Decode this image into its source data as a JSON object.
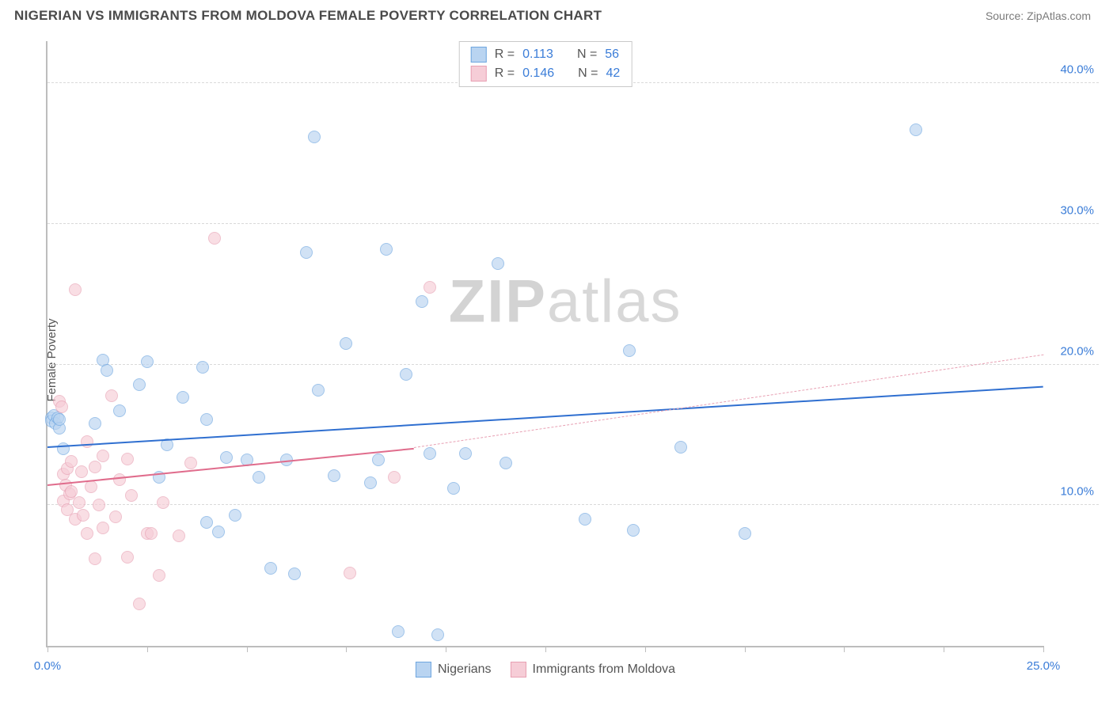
{
  "header": {
    "title": "NIGERIAN VS IMMIGRANTS FROM MOLDOVA FEMALE POVERTY CORRELATION CHART",
    "source": "Source: ZipAtlas.com"
  },
  "chart": {
    "type": "scatter",
    "ylabel": "Female Poverty",
    "watermark_a": "ZIP",
    "watermark_b": "atlas",
    "background_color": "#ffffff",
    "grid_color": "#d9d9d9",
    "axis_color": "#bdbdbd",
    "tick_label_color": "#3b7dd8",
    "xlim": [
      0,
      25
    ],
    "ylim": [
      0,
      43
    ],
    "xticks": [
      0,
      2.5,
      5,
      7.5,
      10,
      12.5,
      15,
      17.5,
      20,
      22.5,
      25
    ],
    "xtick_labels": {
      "0": "0.0%",
      "25": "25.0%"
    },
    "yticks": [
      10,
      20,
      30,
      40
    ],
    "ytick_labels": {
      "10": "10.0%",
      "20": "20.0%",
      "30": "30.0%",
      "40": "40.0%"
    },
    "marker_radius": 8,
    "marker_border_width": 1.5,
    "series": [
      {
        "name": "Nigerians",
        "fill": "#b9d4f1",
        "stroke": "#6ea6e0",
        "fill_opacity": 0.65,
        "r_value": "0.113",
        "n_value": "56",
        "trend": {
          "x1": 0,
          "y1": 14.2,
          "x2": 25,
          "y2": 18.5,
          "color": "#2f6fd0",
          "width": 2.5,
          "dash": "solid"
        },
        "points": [
          [
            0.1,
            16.2
          ],
          [
            0.1,
            16.0
          ],
          [
            0.15,
            16.4
          ],
          [
            0.2,
            15.8
          ],
          [
            0.25,
            16.2
          ],
          [
            0.3,
            15.5
          ],
          [
            0.3,
            16.1
          ],
          [
            0.4,
            14.0
          ],
          [
            1.2,
            15.8
          ],
          [
            1.4,
            20.3
          ],
          [
            1.5,
            19.6
          ],
          [
            1.8,
            16.7
          ],
          [
            2.3,
            18.6
          ],
          [
            2.5,
            20.2
          ],
          [
            2.8,
            12.0
          ],
          [
            3.0,
            14.3
          ],
          [
            3.4,
            17.7
          ],
          [
            4.0,
            8.8
          ],
          [
            4.0,
            16.1
          ],
          [
            4.3,
            8.1
          ],
          [
            4.5,
            13.4
          ],
          [
            4.7,
            9.3
          ],
          [
            3.9,
            19.8
          ],
          [
            5.0,
            13.2
          ],
          [
            5.3,
            12.0
          ],
          [
            5.6,
            5.5
          ],
          [
            6.0,
            13.2
          ],
          [
            6.2,
            5.1
          ],
          [
            6.5,
            28.0
          ],
          [
            6.7,
            36.2
          ],
          [
            6.8,
            18.2
          ],
          [
            7.2,
            12.1
          ],
          [
            7.5,
            21.5
          ],
          [
            8.1,
            11.6
          ],
          [
            8.3,
            13.2
          ],
          [
            8.5,
            28.2
          ],
          [
            8.8,
            1.0
          ],
          [
            9.0,
            19.3
          ],
          [
            9.4,
            24.5
          ],
          [
            9.6,
            13.7
          ],
          [
            9.8,
            0.8
          ],
          [
            10.2,
            11.2
          ],
          [
            10.5,
            13.7
          ],
          [
            11.3,
            27.2
          ],
          [
            11.5,
            13.0
          ],
          [
            13.5,
            9.0
          ],
          [
            14.6,
            21.0
          ],
          [
            14.7,
            8.2
          ],
          [
            15.9,
            14.1
          ],
          [
            17.5,
            8.0
          ],
          [
            21.8,
            36.7
          ]
        ]
      },
      {
        "name": "Immigrants from Moldova",
        "fill": "#f6cdd7",
        "stroke": "#e8a0b3",
        "fill_opacity": 0.65,
        "r_value": "0.146",
        "n_value": "42",
        "trend_solid": {
          "x1": 0,
          "y1": 11.5,
          "x2": 9.2,
          "y2": 14.1,
          "color": "#e06c8c",
          "width": 2,
          "dash": "solid"
        },
        "trend_dash": {
          "x1": 9.2,
          "y1": 14.1,
          "x2": 25,
          "y2": 20.7,
          "color": "#e8a0b3",
          "width": 1.3,
          "dash": "dashed"
        },
        "points": [
          [
            0.3,
            17.4
          ],
          [
            0.35,
            17.0
          ],
          [
            0.4,
            12.2
          ],
          [
            0.4,
            10.3
          ],
          [
            0.45,
            11.4
          ],
          [
            0.5,
            9.7
          ],
          [
            0.5,
            12.6
          ],
          [
            0.55,
            10.8
          ],
          [
            0.6,
            13.1
          ],
          [
            0.6,
            11.0
          ],
          [
            0.7,
            9.0
          ],
          [
            0.7,
            25.3
          ],
          [
            0.8,
            10.2
          ],
          [
            0.85,
            12.4
          ],
          [
            0.9,
            9.3
          ],
          [
            1.0,
            14.5
          ],
          [
            1.0,
            8.0
          ],
          [
            1.1,
            11.3
          ],
          [
            1.2,
            12.7
          ],
          [
            1.2,
            6.2
          ],
          [
            1.3,
            10.0
          ],
          [
            1.4,
            13.5
          ],
          [
            1.4,
            8.4
          ],
          [
            1.6,
            17.8
          ],
          [
            1.7,
            9.2
          ],
          [
            1.8,
            11.8
          ],
          [
            2.0,
            13.3
          ],
          [
            2.0,
            6.3
          ],
          [
            2.1,
            10.7
          ],
          [
            2.3,
            3.0
          ],
          [
            2.5,
            8.0
          ],
          [
            2.6,
            8.0
          ],
          [
            2.8,
            5.0
          ],
          [
            2.9,
            10.2
          ],
          [
            3.3,
            7.8
          ],
          [
            3.6,
            13.0
          ],
          [
            4.2,
            29.0
          ],
          [
            7.6,
            5.2
          ],
          [
            8.7,
            12.0
          ],
          [
            9.6,
            25.5
          ]
        ]
      }
    ],
    "legend_top": {
      "r_label": "R =",
      "n_label": "N ="
    },
    "legend_bottom": {
      "items": [
        "Nigerians",
        "Immigrants from Moldova"
      ]
    }
  }
}
